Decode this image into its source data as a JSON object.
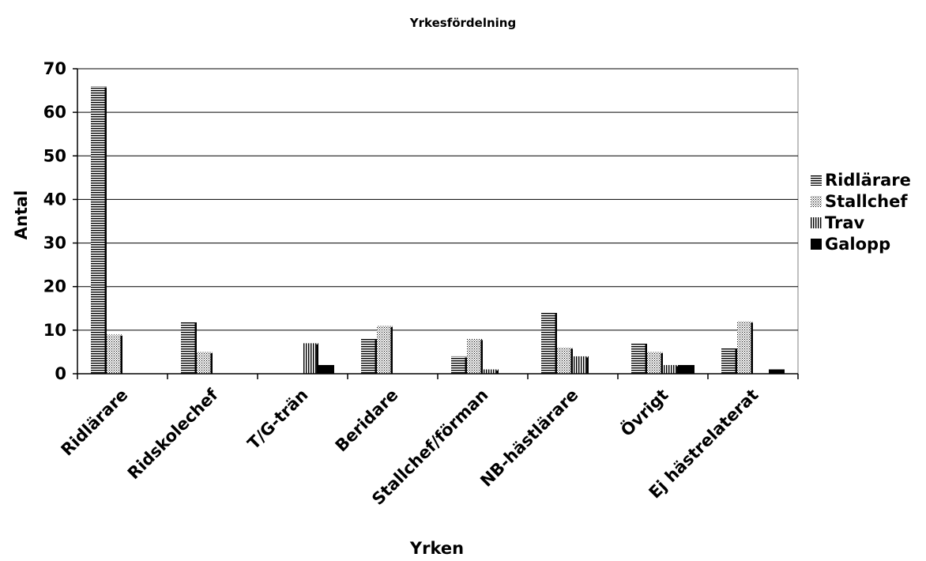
{
  "chart_data": {
    "type": "bar",
    "title": "Yrkesfördelning",
    "xlabel": "Yrken",
    "ylabel": "Antal",
    "ylim": [
      0,
      70
    ],
    "yticks": [
      0,
      10,
      20,
      30,
      40,
      50,
      60,
      70
    ],
    "grid": true,
    "legend_position": "right",
    "categories": [
      "Ridlärare",
      "Ridskolechef",
      "T/G-trän",
      "Beridare",
      "Stallchef/förman",
      "NB-hästlärare",
      "Övrigt",
      "Ej hästrelaterat"
    ],
    "series": [
      {
        "name": "Ridlärare",
        "pattern": "horizontal-lines",
        "values": [
          66,
          12,
          0,
          8,
          4,
          14,
          7,
          6
        ]
      },
      {
        "name": "Stallchef",
        "pattern": "dots",
        "values": [
          9,
          5,
          0,
          11,
          8,
          6,
          5,
          12
        ]
      },
      {
        "name": "Trav",
        "pattern": "vertical-lines",
        "values": [
          0,
          0,
          7,
          0,
          1,
          4,
          2,
          0
        ]
      },
      {
        "name": "Galopp",
        "pattern": "solid",
        "values": [
          0,
          0,
          2,
          0,
          0,
          0,
          2,
          1
        ]
      }
    ],
    "colors": {
      "ink": "#000000",
      "background": "#ffffff",
      "gridline": "#000000"
    }
  }
}
